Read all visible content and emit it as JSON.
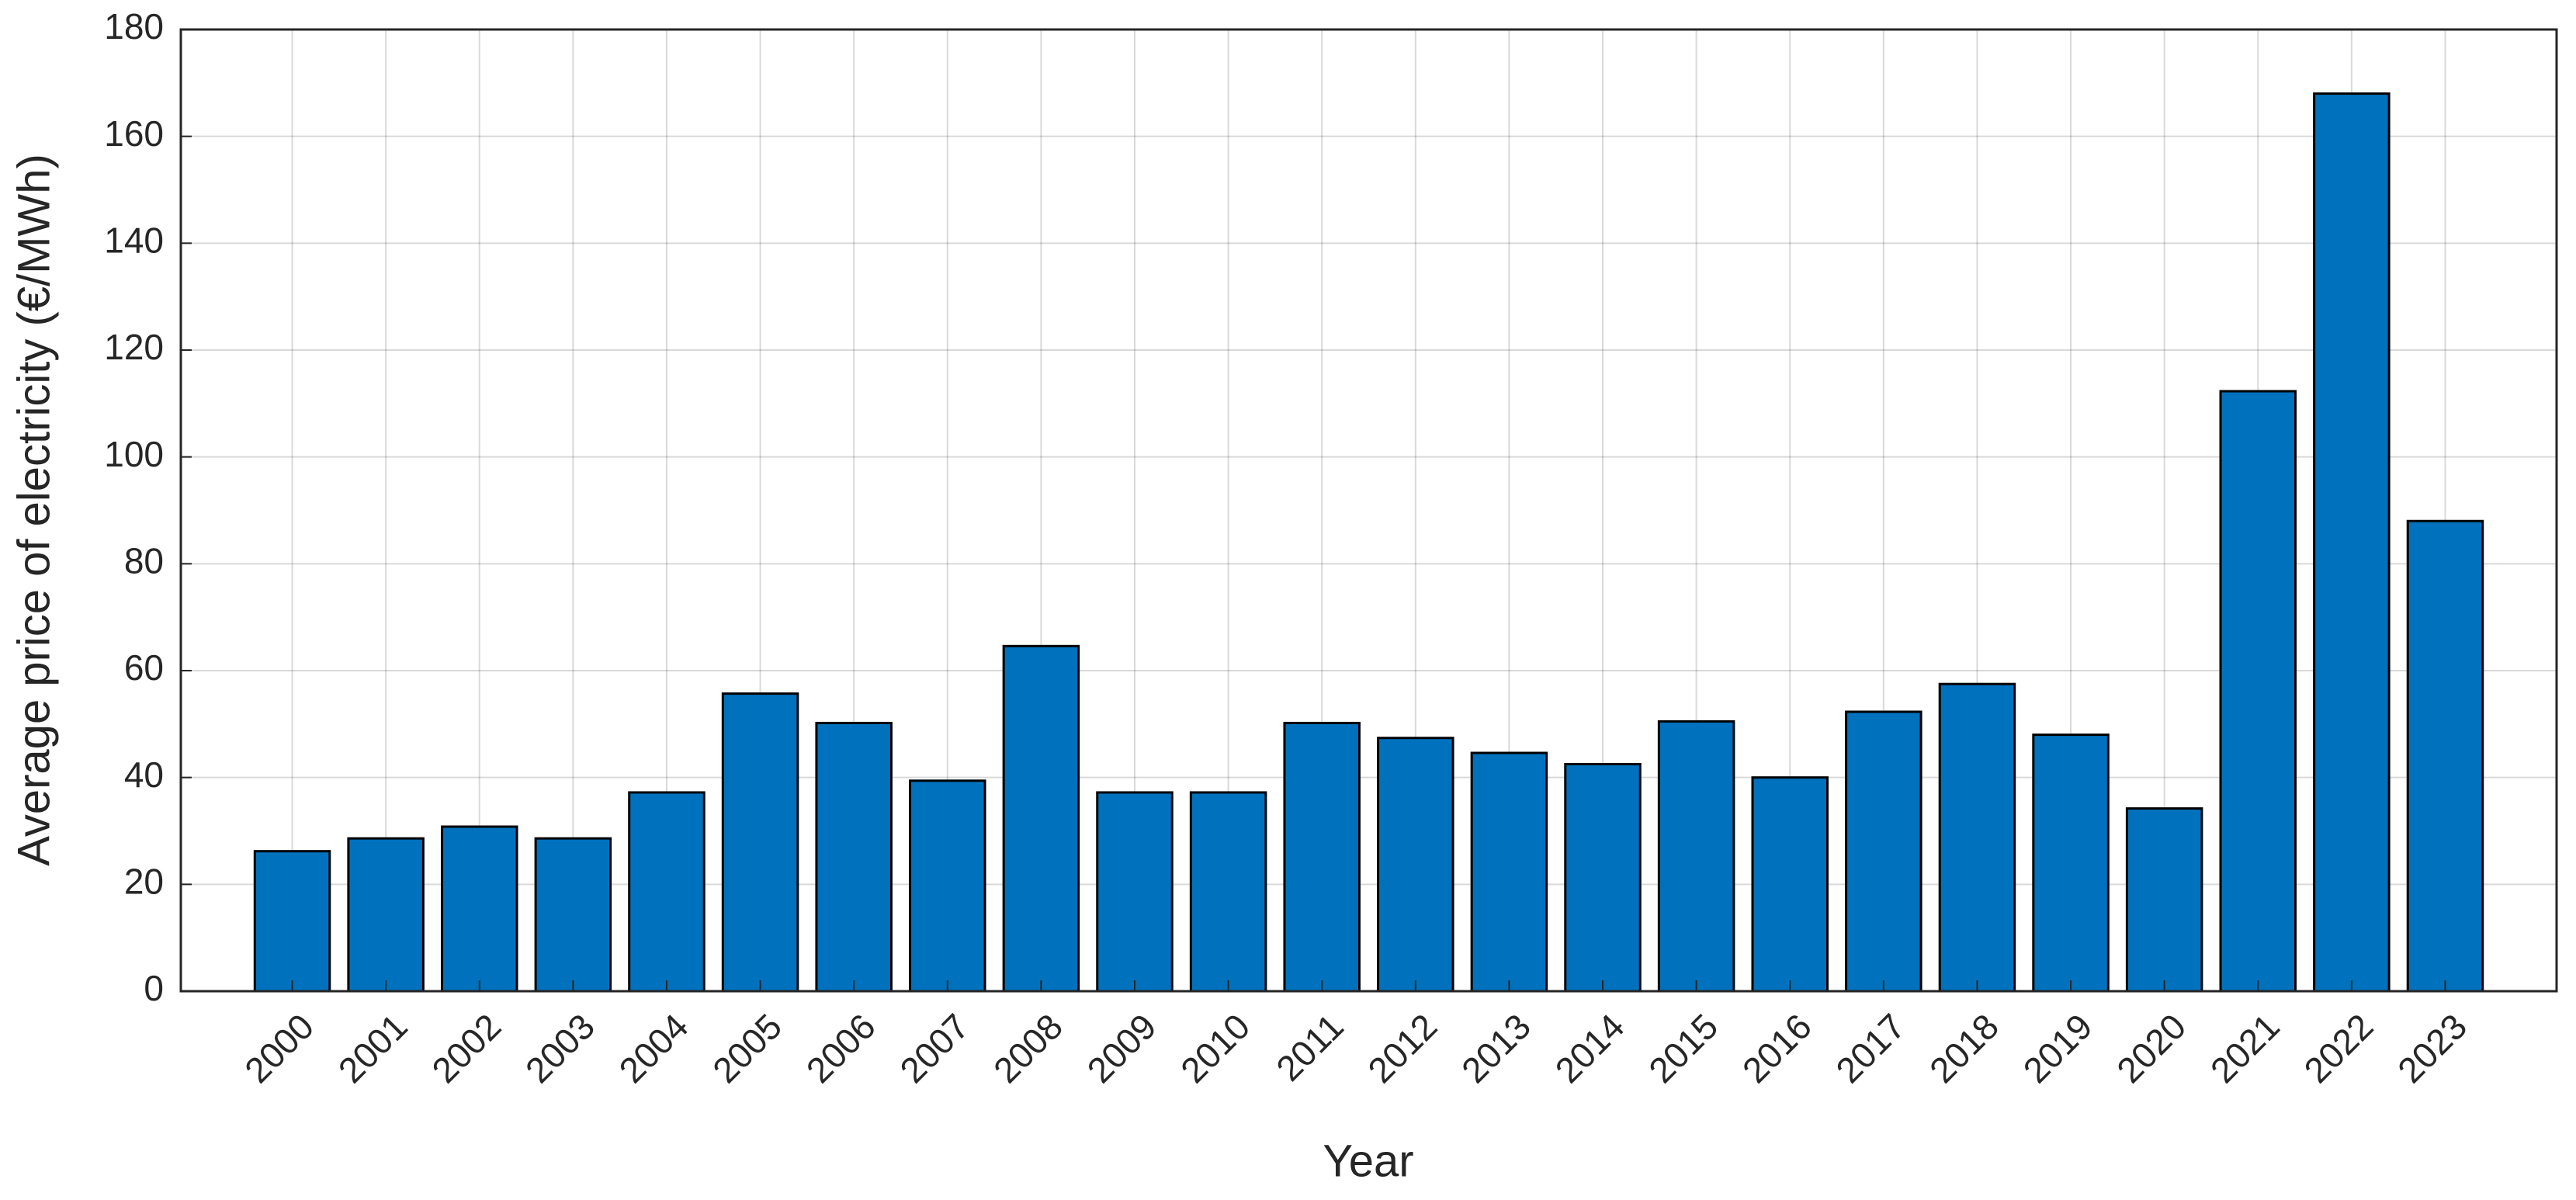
{
  "chart_data": {
    "type": "bar",
    "xlabel": "Year",
    "ylabel": "Average price of electricity (€/MWh)",
    "categories": [
      "2000",
      "2001",
      "2002",
      "2003",
      "2004",
      "2005",
      "2006",
      "2007",
      "2008",
      "2009",
      "2010",
      "2011",
      "2012",
      "2013",
      "2014",
      "2015",
      "2016",
      "2017",
      "2018",
      "2019",
      "2020",
      "2021",
      "2022",
      "2023"
    ],
    "values": [
      26.2,
      28.6,
      30.8,
      28.6,
      37.2,
      55.7,
      50.2,
      39.4,
      64.6,
      37.2,
      37.2,
      50.2,
      47.4,
      44.6,
      42.5,
      50.5,
      40.0,
      52.3,
      57.5,
      48.0,
      34.2,
      112.3,
      168.0,
      88.0
    ],
    "color": "#0072bd",
    "ylim": [
      0,
      180
    ],
    "yticks": [
      0,
      20,
      40,
      60,
      80,
      100,
      120,
      140,
      160,
      180
    ],
    "grid": true
  }
}
